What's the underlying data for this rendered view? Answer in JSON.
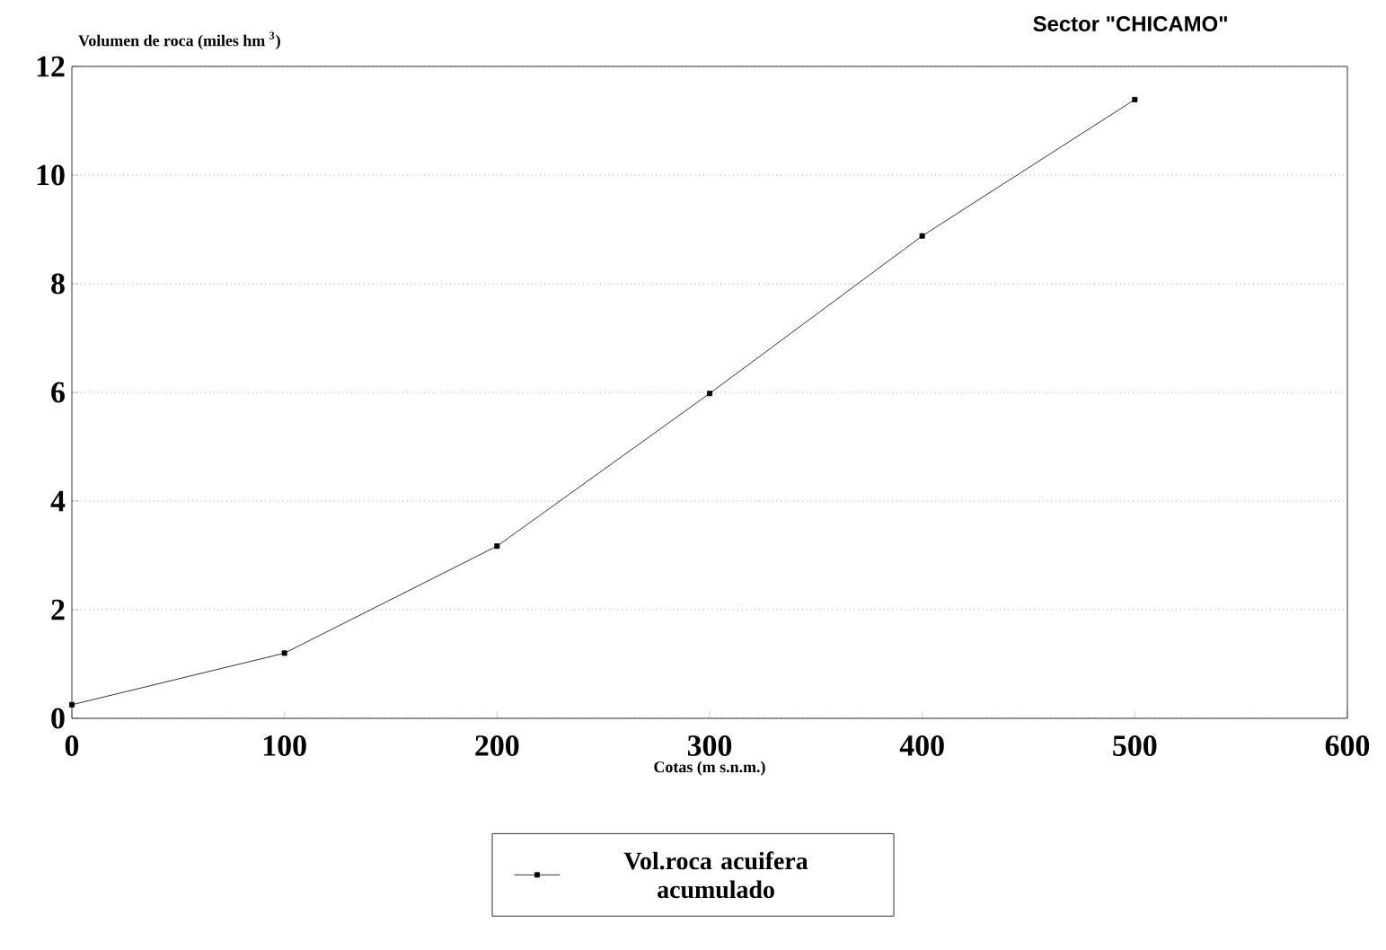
{
  "chart_data": {
    "type": "line",
    "title": "Sector \"CHICAMO\"",
    "xlabel": "Cotas (m s.n.m.)",
    "ylabel": "Volumen de roca (miles hm $^{3}$)",
    "x": [
      0,
      100,
      200,
      300,
      400,
      500
    ],
    "series": [
      {
        "name": "Vol.roca acuifera acumulado",
        "color": "#000000",
        "values": [
          0.25,
          1.2,
          3.17,
          5.98,
          8.88,
          11.39
        ]
      }
    ],
    "xlim": [
      0,
      600
    ],
    "xticks": [
      0,
      100,
      200,
      300,
      400,
      500,
      600
    ],
    "ylim": [
      0,
      12
    ],
    "yticks": [
      0,
      2,
      4,
      6,
      8,
      10,
      12
    ],
    "grid": "y",
    "legend": "bottom",
    "marker": "square",
    "line_style": "solid"
  }
}
